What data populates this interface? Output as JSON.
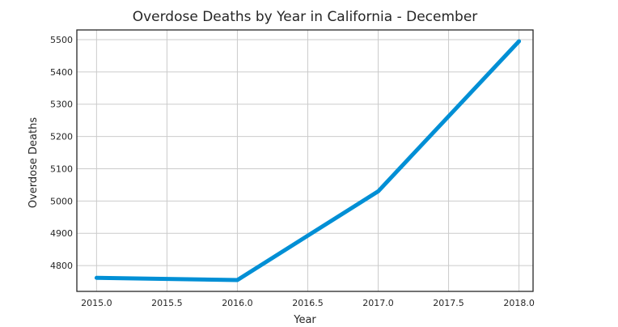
{
  "chart_data": {
    "type": "line",
    "title": "Overdose Deaths by Year in California - December",
    "xlabel": "Year",
    "ylabel": "Overdose Deaths",
    "xlim": [
      2014.86,
      2018.1
    ],
    "ylim": [
      4720,
      5530
    ],
    "grid": true,
    "x_ticks": [
      "2015.0",
      "2015.5",
      "2016.0",
      "2016.5",
      "2017.0",
      "2017.5",
      "2018.0"
    ],
    "y_ticks": [
      "4800",
      "4900",
      "5000",
      "5100",
      "5200",
      "5300",
      "5400",
      "5500"
    ],
    "series": [
      {
        "color": "#008fd5",
        "x": [
          2015,
          2016,
          2017,
          2018
        ],
        "y": [
          4762,
          4755,
          5030,
          5495
        ]
      }
    ]
  }
}
